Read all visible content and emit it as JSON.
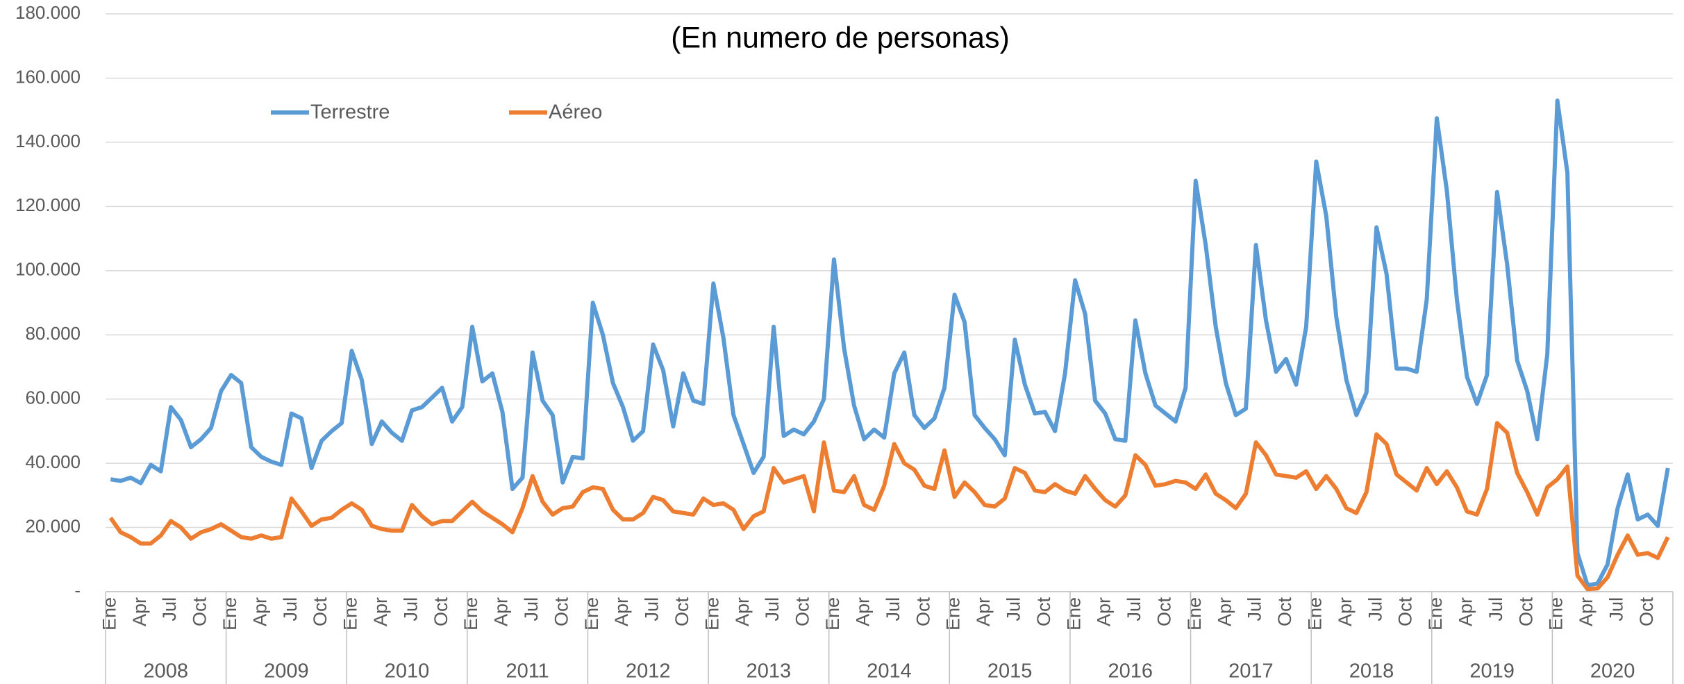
{
  "chart_data": {
    "type": "line",
    "title": "(En numero de personas)",
    "categories": [
      "Ene",
      null,
      null,
      "Apr",
      null,
      null,
      "Jul",
      null,
      null,
      "Oct",
      null,
      null,
      "Ene",
      null,
      null,
      "Apr",
      null,
      null,
      "Jul",
      null,
      null,
      "Oct",
      null,
      null,
      "Ene",
      null,
      null,
      "Apr",
      null,
      null,
      "Jul",
      null,
      null,
      "Oct",
      null,
      null,
      "Ene",
      null,
      null,
      "Apr",
      null,
      null,
      "Jul",
      null,
      null,
      "Oct",
      null,
      null,
      "Ene",
      null,
      null,
      "Apr",
      null,
      null,
      "Jul",
      null,
      null,
      "Oct",
      null,
      null,
      "Ene",
      null,
      null,
      "Apr",
      null,
      null,
      "Jul",
      null,
      null,
      "Oct",
      null,
      null,
      "Ene",
      null,
      null,
      "Apr",
      null,
      null,
      "Jul",
      null,
      null,
      "Oct",
      null,
      null,
      "Ene",
      null,
      null,
      "Apr",
      null,
      null,
      "Jul",
      null,
      null,
      "Oct",
      null,
      null,
      "Ene",
      null,
      null,
      "Apr",
      null,
      null,
      "Jul",
      null,
      null,
      "Oct",
      null,
      null,
      "Ene",
      null,
      null,
      "Apr",
      null,
      null,
      "Jul",
      null,
      null,
      "Oct",
      null,
      null,
      "Ene",
      null,
      null,
      "Apr",
      null,
      null,
      "Jul",
      null,
      null,
      "Oct",
      null,
      null,
      "Ene",
      null,
      null,
      "Apr",
      null,
      null,
      "Jul",
      null,
      null,
      "Oct",
      null,
      null,
      "Ene",
      null,
      null,
      "Apr",
      null,
      null,
      "Jul",
      null,
      null,
      "Oct",
      null,
      null
    ],
    "year_groups": [
      "2008",
      "2009",
      "2010",
      "2011",
      "2012",
      "2013",
      "2014",
      "2015",
      "2016",
      "2017",
      "2018",
      "2019",
      "2020"
    ],
    "series": [
      {
        "name": "Terrestre",
        "color": "#5b9bd5",
        "values": [
          35000,
          34500,
          35500,
          33800,
          39500,
          37500,
          57500,
          53500,
          45000,
          47500,
          51000,
          62500,
          67500,
          65000,
          45000,
          42000,
          40500,
          39500,
          55500,
          54000,
          38500,
          47000,
          50000,
          52500,
          75000,
          66000,
          46000,
          53000,
          49500,
          47000,
          56500,
          57500,
          60500,
          63500,
          53000,
          57500,
          82500,
          65500,
          68000,
          56000,
          32000,
          35500,
          74500,
          59500,
          55000,
          34000,
          42000,
          41500,
          90000,
          80000,
          65000,
          57500,
          47000,
          50000,
          77000,
          69000,
          51500,
          68000,
          59500,
          58500,
          96000,
          79000,
          55000,
          46000,
          37000,
          42000,
          82500,
          48500,
          50500,
          49000,
          53000,
          60000,
          103500,
          76000,
          58000,
          47500,
          50500,
          48000,
          68000,
          74500,
          55000,
          51000,
          54000,
          63500,
          92500,
          84000,
          55000,
          51000,
          47500,
          42500,
          78500,
          64500,
          55500,
          56000,
          50000,
          68000,
          97000,
          86500,
          59500,
          55500,
          47500,
          47000,
          84500,
          68000,
          58000,
          55500,
          53000,
          63500,
          128000,
          108000,
          82500,
          65000,
          55000,
          57000,
          108000,
          84500,
          68500,
          72500,
          64500,
          82500,
          134000,
          117000,
          85500,
          66000,
          55000,
          62000,
          113500,
          99000,
          69500,
          69500,
          68500,
          91000,
          147500,
          125000,
          91000,
          67000,
          58500,
          67500,
          124500,
          102000,
          72000,
          62500,
          47500,
          74000,
          153000,
          130500,
          12000,
          2000,
          2500,
          8500,
          26000,
          36500,
          22500,
          24000,
          20500,
          38500
        ]
      },
      {
        "name": "Aéreo",
        "color": "#ed7d31",
        "values": [
          23000,
          18500,
          17000,
          15000,
          15000,
          17500,
          22000,
          20000,
          16500,
          18500,
          19500,
          21000,
          19000,
          17000,
          16500,
          17500,
          16500,
          17000,
          29000,
          25000,
          20500,
          22500,
          23000,
          25500,
          27500,
          25500,
          20500,
          19500,
          19000,
          19000,
          27000,
          23500,
          21000,
          22000,
          22000,
          25000,
          28000,
          25000,
          23000,
          21000,
          18500,
          26000,
          36000,
          28000,
          24000,
          26000,
          26500,
          31000,
          32500,
          32000,
          25500,
          22500,
          22500,
          24500,
          29500,
          28500,
          25000,
          24500,
          24000,
          29000,
          27000,
          27500,
          25500,
          19500,
          23500,
          25000,
          38500,
          34000,
          35000,
          36000,
          25000,
          46500,
          31500,
          31000,
          36000,
          27000,
          25500,
          33000,
          46000,
          40000,
          38000,
          33000,
          32000,
          44000,
          29500,
          34000,
          31000,
          27000,
          26500,
          29000,
          38500,
          37000,
          31500,
          31000,
          33500,
          31500,
          30500,
          36000,
          32000,
          28500,
          26500,
          30000,
          42500,
          39500,
          33000,
          33500,
          34500,
          34000,
          32000,
          36500,
          30500,
          28500,
          26000,
          30500,
          46500,
          42500,
          36500,
          36000,
          35500,
          37500,
          32000,
          36000,
          32000,
          26000,
          24500,
          31000,
          49000,
          46000,
          36500,
          34000,
          31500,
          38500,
          33500,
          37500,
          32500,
          25000,
          24000,
          32000,
          52500,
          49500,
          37000,
          31000,
          24000,
          32500,
          35000,
          39000,
          5000,
          800,
          1000,
          4500,
          11500,
          17500,
          11500,
          12000,
          10500,
          17000
        ]
      }
    ],
    "ylim": [
      0,
      180000
    ],
    "yticks": [
      {
        "value": 0,
        "label": "-"
      },
      {
        "value": 20000,
        "label": "20.000"
      },
      {
        "value": 40000,
        "label": "40.000"
      },
      {
        "value": 60000,
        "label": "60.000"
      },
      {
        "value": 80000,
        "label": "80.000"
      },
      {
        "value": 100000,
        "label": "100.000"
      },
      {
        "value": 120000,
        "label": "120.000"
      },
      {
        "value": 140000,
        "label": "140.000"
      },
      {
        "value": 160000,
        "label": "160.000"
      },
      {
        "value": 180000,
        "label": "180.000"
      }
    ],
    "grid": true,
    "legend_position": "top-left"
  }
}
